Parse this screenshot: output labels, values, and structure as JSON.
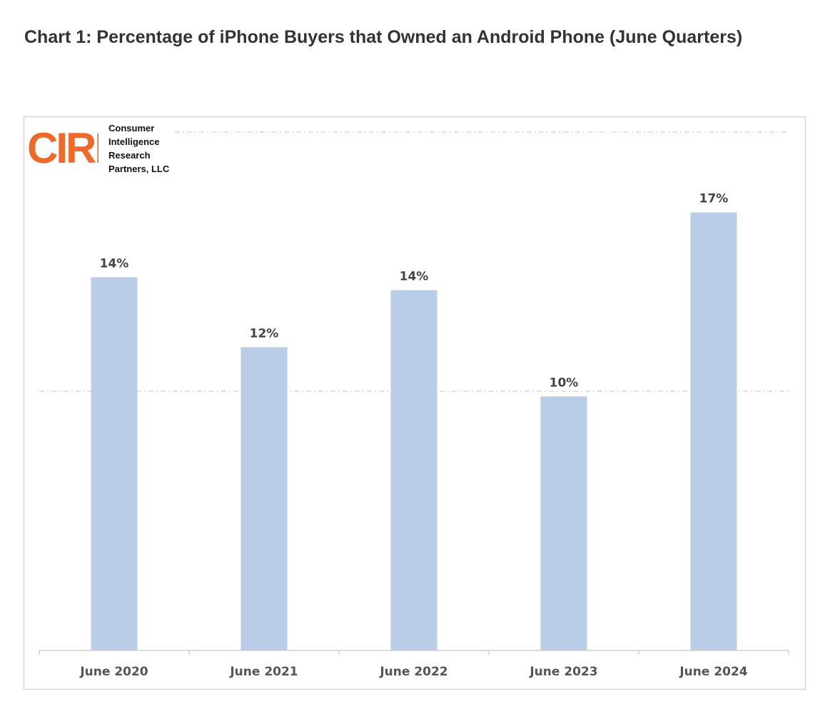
{
  "title": "Chart 1: Percentage of iPhone Buyers that Owned an Android Phone (June Quarters)",
  "logo": {
    "mark": "CIRP",
    "name_lines": [
      "Consumer",
      "Intelligence",
      "Research",
      "Partners, LLC"
    ],
    "color": "#ee6a2b"
  },
  "chart_data": {
    "type": "bar",
    "categories": [
      "June 2020",
      "June 2021",
      "June 2022",
      "June 2023",
      "June 2024"
    ],
    "values": [
      14.4,
      11.7,
      13.9,
      9.8,
      16.9
    ],
    "data_labels": [
      "14%",
      "12%",
      "14%",
      "10%",
      "17%"
    ],
    "ylim": [
      0,
      20
    ],
    "gridlines": [
      10,
      20
    ],
    "grid": true,
    "grid_style": "dash-dot",
    "bar_color": "#b9cde6",
    "y_axis_labels_shown": false,
    "legend": "none"
  }
}
